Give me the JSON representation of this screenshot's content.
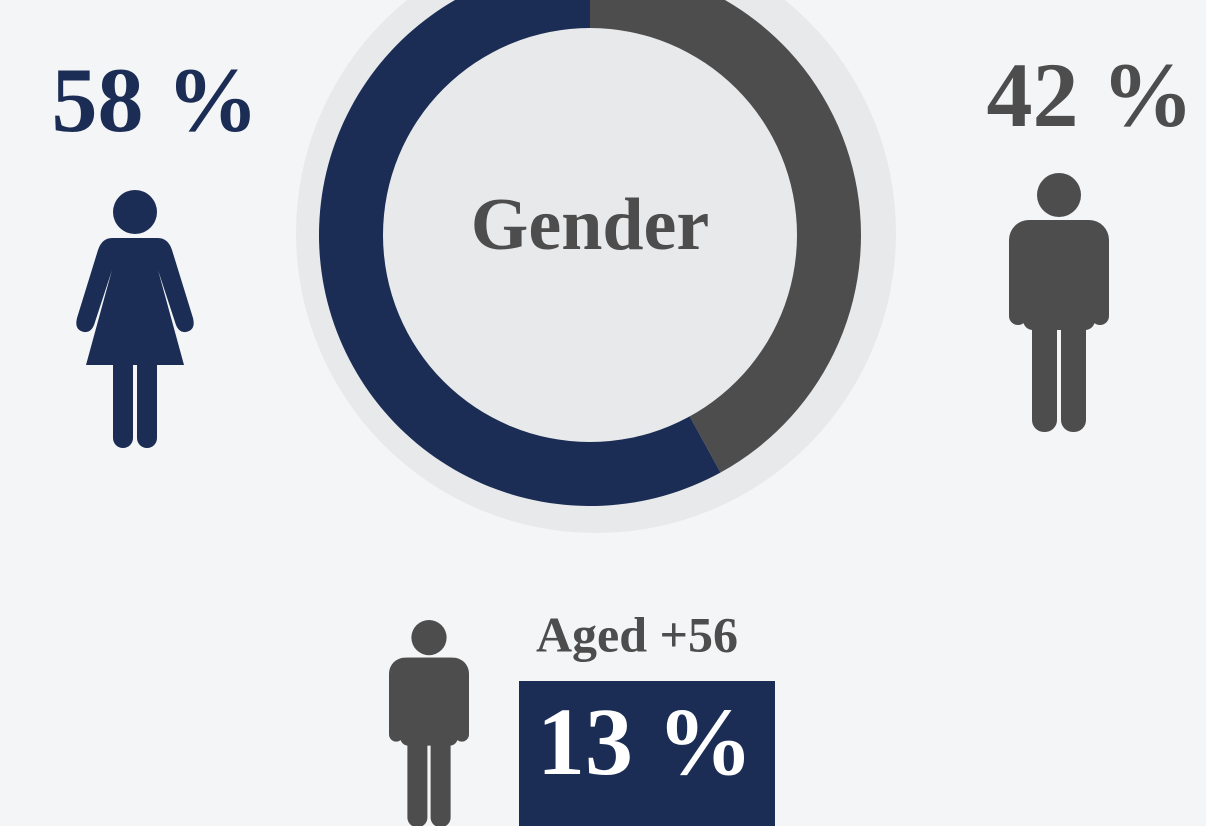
{
  "chart_data": {
    "type": "donut",
    "title": "Gender",
    "values": [
      58,
      42
    ],
    "value_labels": [
      "58 %",
      "42 %"
    ],
    "colors": [
      "#1b2d54",
      "#4d4d4d"
    ],
    "annotation": {
      "label": "Aged +56",
      "value": 13,
      "value_label": "13 %"
    }
  }
}
